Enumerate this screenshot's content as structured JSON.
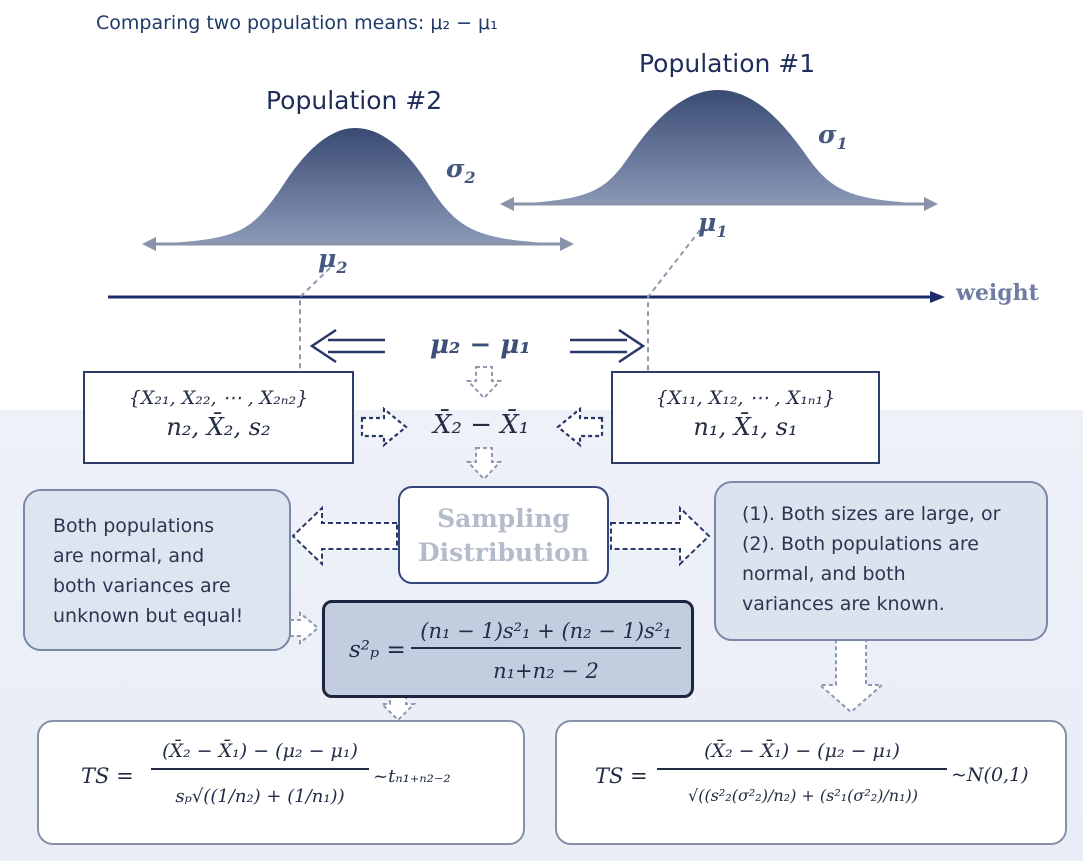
{
  "title": "Comparing two population means: μ₂ − μ₁",
  "population2": {
    "label": "Population #2",
    "sigma": "σ",
    "sigma_sub": "2",
    "mu": "μ",
    "mu_sub": "2"
  },
  "population1": {
    "label": "Population #1",
    "sigma": "σ",
    "sigma_sub": "1",
    "mu": "μ",
    "mu_sub": "1"
  },
  "axis_label": "weight",
  "difference": "μ₂ − μ₁",
  "sample2": {
    "set": "{X₂₁, X₂₂, ⋯ , X₂ₙ₂}",
    "stats": "n₂, X̄₂, s₂"
  },
  "sample1": {
    "set": "{X₁₁, X₁₂, ⋯ , X₁ₙ₁}",
    "stats": "n₁, X̄₁, s₁"
  },
  "center_stat": "X̄₂ − X̄₁",
  "sampling_distribution": {
    "line1": "Sampling",
    "line2": "Distribution"
  },
  "left_condition": [
    "Both populations",
    "are normal, and",
    "both variances are",
    "unknown but equal!"
  ],
  "right_condition": [
    "(1). Both sizes are large, or",
    "(2). Both populations are",
    "normal, and both",
    "variances are known."
  ],
  "pooled_variance": {
    "lhs": "s²ₚ =",
    "numerator": "(n₁ − 1)s²₁ + (n₂ − 1)s²₁",
    "denominator": "n₁+n₂ − 2"
  },
  "ts_left": {
    "lhs": "TS =",
    "numerator": "(X̄₂ − X̄₁) − (μ₂ − μ₁)",
    "denominator": "sₚ√((1/n₂) + (1/n₁))",
    "dist": "~tₙ₁₊ₙ₂₋₂"
  },
  "ts_right": {
    "lhs": "TS =",
    "numerator": "(X̄₂ − X̄₁) − (μ₂ − μ₁)",
    "denominator": "√((s²₂(σ²₂)/n₂) + (s²₁(σ²₂)/n₁))",
    "dist": "~N(0,1)"
  },
  "colors": {
    "curve_top": "#394a72",
    "curve_bottom": "#8c9ab8",
    "axis": "#1d2b6b",
    "box_border": "#2c3b68"
  }
}
